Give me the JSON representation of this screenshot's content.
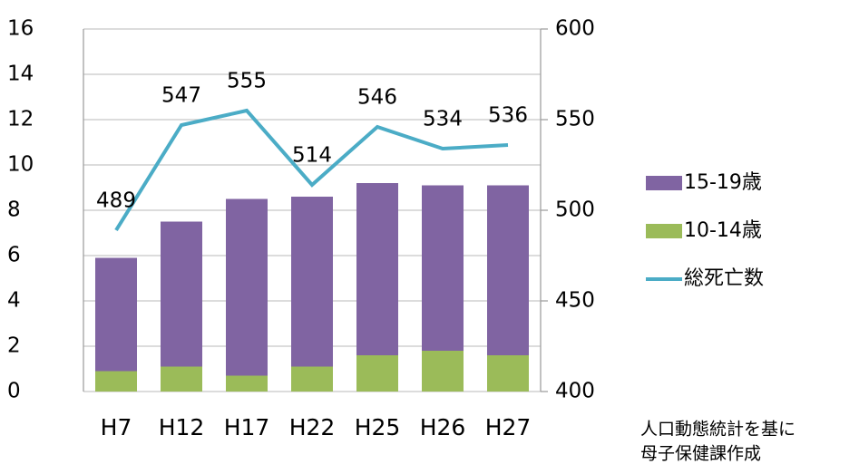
{
  "chart_data": {
    "type": "bar",
    "categories": [
      "H7",
      "H12",
      "H17",
      "H22",
      "H25",
      "H26",
      "H27"
    ],
    "series": [
      {
        "name": "15-19歳",
        "color": "#8064a2",
        "type": "bar",
        "values": [
          5.0,
          6.4,
          7.8,
          7.5,
          7.6,
          7.3,
          7.5
        ]
      },
      {
        "name": "10-14歳",
        "color": "#9bbb59",
        "type": "bar",
        "values": [
          0.9,
          1.1,
          0.7,
          1.1,
          1.6,
          1.8,
          1.6
        ]
      },
      {
        "name": "総死亡数",
        "color": "#4bacc6",
        "type": "line",
        "axis": "y2",
        "values": [
          489,
          547,
          555,
          514,
          546,
          534,
          536
        ]
      }
    ],
    "stacked": true,
    "ylim": [
      0,
      16
    ],
    "yticks": [
      0,
      2,
      4,
      6,
      8,
      10,
      12,
      14,
      16
    ],
    "y2lim": [
      400,
      600
    ],
    "y2ticks": [
      400,
      450,
      500,
      550,
      600
    ],
    "grid": true,
    "legend": "right",
    "note": [
      "人口動態統計を基に",
      "母子保健課作成"
    ]
  }
}
